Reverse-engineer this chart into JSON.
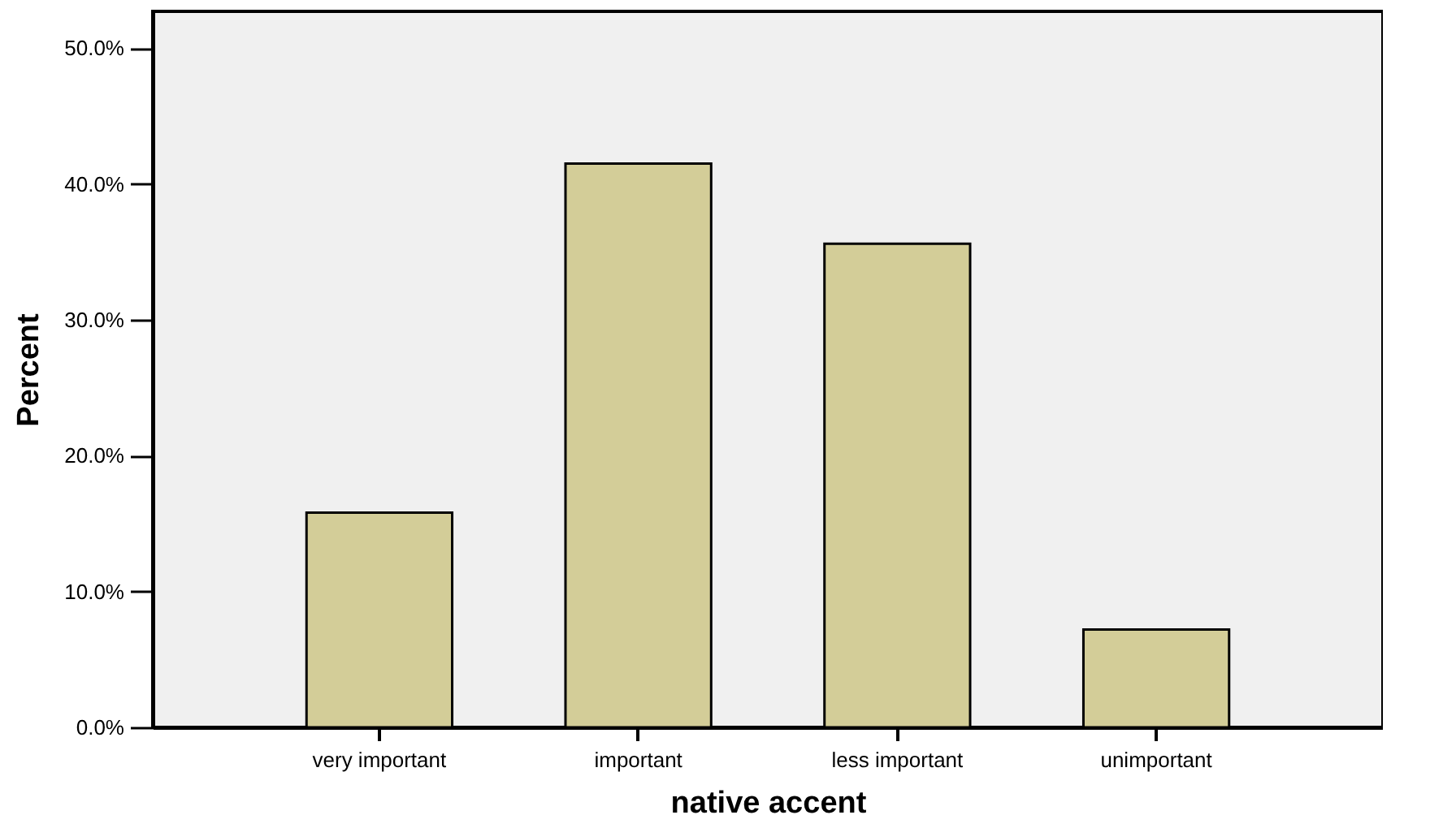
{
  "chart_data": {
    "type": "bar",
    "xlabel": "native accent",
    "ylabel": "Percent",
    "categories": [
      "very important",
      "important",
      "less important",
      "unimportant"
    ],
    "values": [
      15.8,
      41.5,
      35.6,
      7.2
    ],
    "color": "#d3cd98",
    "ylim": [
      0,
      52.7
    ],
    "yticks": [
      {
        "value": 0,
        "label": "0.0%"
      },
      {
        "value": 10,
        "label": "10.0%"
      },
      {
        "value": 20,
        "label": "20.0%"
      },
      {
        "value": 30,
        "label": "30.0%"
      },
      {
        "value": 40,
        "label": "40.0%"
      },
      {
        "value": 50,
        "label": "50.0%"
      }
    ],
    "grid": false
  }
}
